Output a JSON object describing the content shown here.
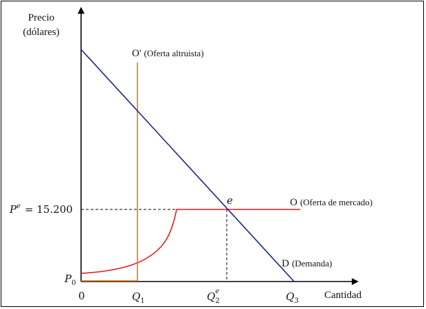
{
  "axes": {
    "y_label_line1": "Precio",
    "y_label_line2": "(dólares)",
    "x_label": "Cantidad",
    "origin": "0"
  },
  "price_labels": {
    "pe_base": "P",
    "pe_sup": "e",
    "pe_value": "= 15.200",
    "p0_base": "P",
    "p0_sub": "0"
  },
  "quantity_labels": {
    "q1_base": "Q",
    "q1_sub": "1",
    "q2_base": "Q",
    "q2_sup": "e",
    "q2_sub": "2",
    "q3_base": "Q",
    "q3_sub": "3"
  },
  "curves": {
    "altruistic_supply_letter": "O'",
    "altruistic_supply_text": "(Oferta altruista)",
    "market_supply_letter": "O",
    "market_supply_text": "(Oferta de mercado)",
    "demand_letter": "D",
    "demand_text": "(Demanda)",
    "equilibrium_point": "e"
  },
  "colors": {
    "axis": "#000000",
    "demand": "#1a237e",
    "market_supply": "#e21a1a",
    "altruistic_supply": "#e07b00",
    "guide": "#000000"
  }
}
